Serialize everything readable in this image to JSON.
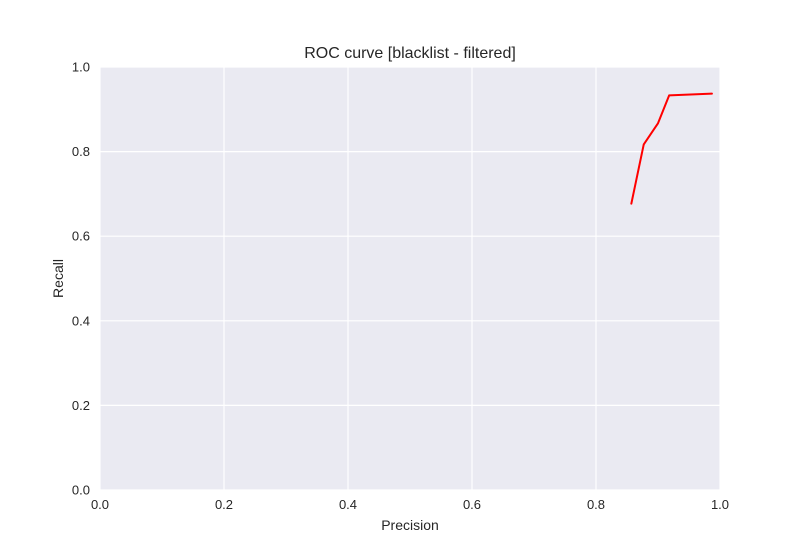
{
  "chart_data": {
    "type": "line",
    "title": "ROC curve [blacklist - filtered]",
    "xlabel": "Precision",
    "ylabel": "Recall",
    "xlim": [
      0.0,
      1.0
    ],
    "ylim": [
      0.0,
      1.0
    ],
    "xticks": [
      "0.0",
      "0.2",
      "0.4",
      "0.6",
      "0.8",
      "1.0"
    ],
    "yticks": [
      "0.0",
      "0.2",
      "0.4",
      "0.6",
      "0.8",
      "1.0"
    ],
    "grid": true,
    "series": [
      {
        "color": "#ff0000",
        "x": [
          0.857,
          0.877,
          0.9,
          0.918,
          0.987
        ],
        "y": [
          0.677,
          0.817,
          0.867,
          0.933,
          0.937
        ]
      }
    ]
  },
  "colors": {
    "plot_background": "#eaeaf2",
    "grid": "#ffffff",
    "text": "#262626"
  }
}
